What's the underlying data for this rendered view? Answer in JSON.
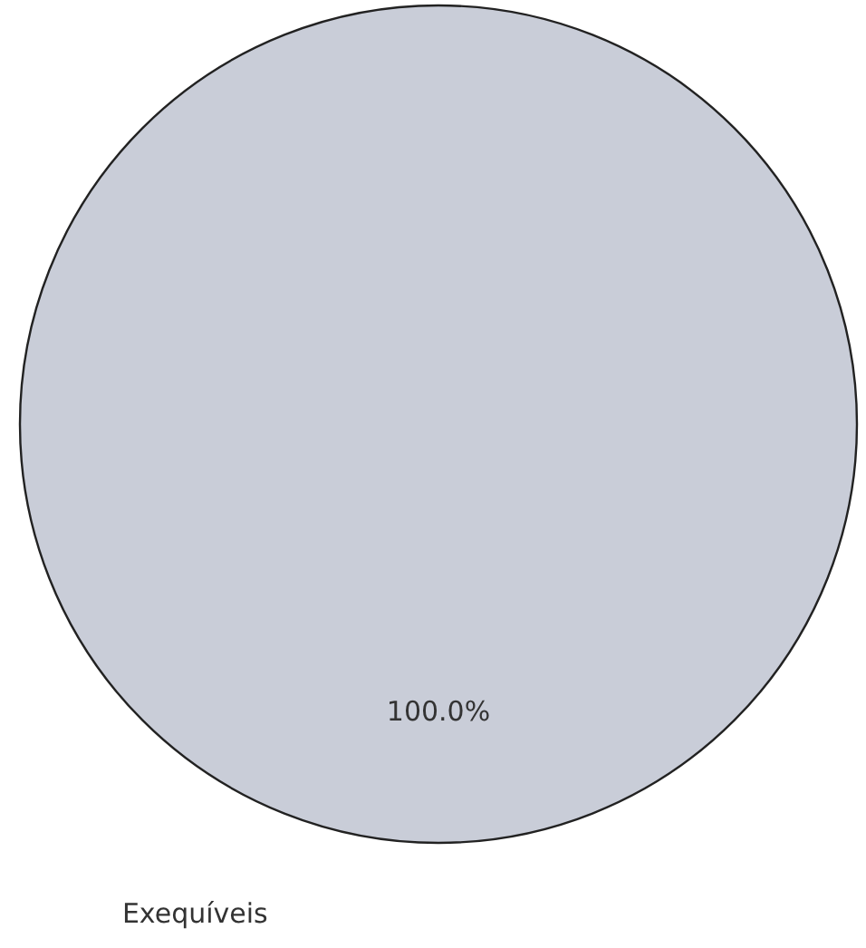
{
  "chart_data": {
    "type": "pie",
    "categories": [
      "Exequíveis"
    ],
    "values": [
      100
    ],
    "colors": [
      "#c9cdd8"
    ],
    "value_labels": [
      "100.0%"
    ],
    "legend": false
  }
}
